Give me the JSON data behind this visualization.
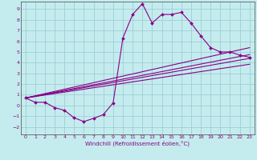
{
  "xlabel": "Windchill (Refroidissement éolien,°C)",
  "background_color": "#c4ecee",
  "grid_color": "#a0ccd4",
  "line_color": "#880088",
  "xlim": [
    -0.5,
    23.5
  ],
  "ylim": [
    -2.7,
    9.7
  ],
  "xticks": [
    0,
    1,
    2,
    3,
    4,
    5,
    6,
    7,
    8,
    9,
    10,
    11,
    12,
    13,
    14,
    15,
    16,
    17,
    18,
    19,
    20,
    21,
    22,
    23
  ],
  "yticks": [
    -2,
    -1,
    0,
    1,
    2,
    3,
    4,
    5,
    6,
    7,
    8,
    9
  ],
  "curve1_x": [
    0,
    1,
    2,
    3,
    4,
    5,
    6,
    7,
    8,
    9,
    10,
    11,
    12,
    13,
    14,
    15,
    16,
    17,
    18,
    19,
    20,
    21,
    22,
    23
  ],
  "curve1_y": [
    0.7,
    0.3,
    0.3,
    -0.2,
    -0.45,
    -1.15,
    -1.5,
    -1.2,
    -0.85,
    0.25,
    6.3,
    8.5,
    9.5,
    7.7,
    8.5,
    8.5,
    8.7,
    7.7,
    6.5,
    5.4,
    5.0,
    5.0,
    4.7,
    4.5
  ],
  "line1_x": [
    0,
    23
  ],
  "line1_y": [
    0.7,
    4.4
  ],
  "line2_x": [
    0,
    23
  ],
  "line2_y": [
    0.7,
    4.75
  ],
  "line3_x": [
    0,
    23
  ],
  "line3_y": [
    0.7,
    5.4
  ],
  "line4_x": [
    0,
    23
  ],
  "line4_y": [
    0.7,
    3.85
  ]
}
